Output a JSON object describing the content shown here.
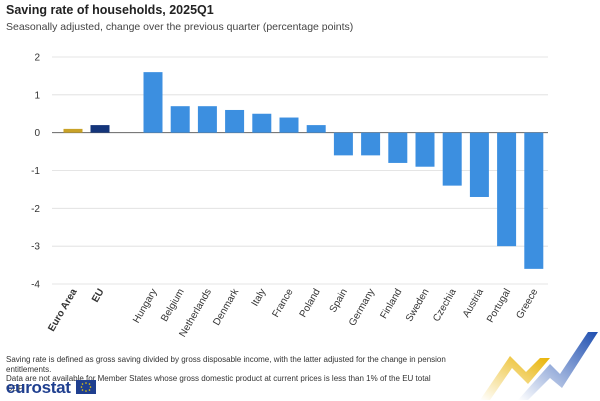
{
  "chart_data": {
    "type": "bar",
    "title": "Saving rate of households, 2025Q1",
    "subtitle": "Seasonally adjusted, change over the previous quarter (percentage points)",
    "xlabel": "",
    "ylabel": "",
    "ylim": [
      -4,
      2
    ],
    "yticks": [
      "2",
      "1",
      "0",
      "-1",
      "-2",
      "-3",
      "-4"
    ],
    "grid": true,
    "categories": [
      "Euro Area",
      "EU",
      "Hungary",
      "Belgium",
      "Netherlands",
      "Denmark",
      "Italy",
      "France",
      "Poland",
      "Spain",
      "Germany",
      "Finland",
      "Sweden",
      "Czechia",
      "Austria",
      "Portugal",
      "Greece"
    ],
    "values": [
      0.1,
      0.2,
      1.6,
      0.7,
      0.7,
      0.6,
      0.5,
      0.4,
      0.2,
      -0.6,
      -0.6,
      -0.8,
      -0.9,
      -1.4,
      -1.7,
      -3.0,
      -3.6
    ],
    "colors": [
      "#c9a227",
      "#14357a",
      "#3c8fe0",
      "#3c8fe0",
      "#3c8fe0",
      "#3c8fe0",
      "#3c8fe0",
      "#3c8fe0",
      "#3c8fe0",
      "#3c8fe0",
      "#3c8fe0",
      "#3c8fe0",
      "#3c8fe0",
      "#3c8fe0",
      "#3c8fe0",
      "#3c8fe0",
      "#3c8fe0"
    ],
    "bold_categories": [
      "Euro Area",
      "EU"
    ]
  },
  "footnotes": [
    "Saving rate is defined as gross saving divided by gross disposable income, with the latter adjusted for the change in pension entitlements.",
    "Data are not available for Member States whose gross domestic product at current prices is less than 1% of the EU total GDP."
  ],
  "brand": {
    "logo_text": "eurostat",
    "blue": "#1f3f8f",
    "gold": "#f2b600"
  }
}
